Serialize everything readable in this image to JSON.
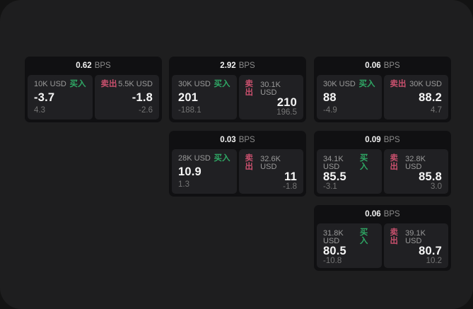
{
  "app": {
    "unit": "BPS",
    "buy_label": "买入",
    "sell_label": "卖出",
    "colors": {
      "buy_green": "#2fa865",
      "sell_red": "#c8506d",
      "page_bg": "#1e1e1f",
      "backdrop": "#131313",
      "card_bg": "#101012",
      "panel_bg": "#202023",
      "primary_text": "#f6f6f6",
      "secondary_text": "#9a9a9a",
      "muted_text": "#757575"
    }
  },
  "cards": [
    {
      "bps": "0.62",
      "buy": {
        "amount": "10K USD",
        "price": "-3.7",
        "delta": "4.3"
      },
      "sell": {
        "amount": "5.5K USD",
        "price": "-1.8",
        "delta": "-2.6"
      }
    },
    {
      "bps": "2.92",
      "buy": {
        "amount": "30K USD",
        "price": "201",
        "delta": "-188.1"
      },
      "sell": {
        "amount": "30.1K USD",
        "price": "210",
        "delta": "196.5"
      }
    },
    {
      "bps": "0.06",
      "buy": {
        "amount": "30K USD",
        "price": "88",
        "delta": "-4.9"
      },
      "sell": {
        "amount": "30K USD",
        "price": "88.2",
        "delta": "4.7"
      }
    },
    {
      "bps": "0.03",
      "buy": {
        "amount": "28K USD",
        "price": "10.9",
        "delta": "1.3"
      },
      "sell": {
        "amount": "32.6K USD",
        "price": "11",
        "delta": "-1.8"
      }
    },
    {
      "bps": "0.09",
      "buy": {
        "amount": "34.1K USD",
        "price": "85.5",
        "delta": "-3.1"
      },
      "sell": {
        "amount": "32.8K USD",
        "price": "85.8",
        "delta": "3.0"
      }
    },
    {
      "bps": "0.06",
      "buy": {
        "amount": "31.8K USD",
        "price": "80.5",
        "delta": "-10.8"
      },
      "sell": {
        "amount": "39.1K USD",
        "price": "80.7",
        "delta": "10.2"
      }
    }
  ]
}
